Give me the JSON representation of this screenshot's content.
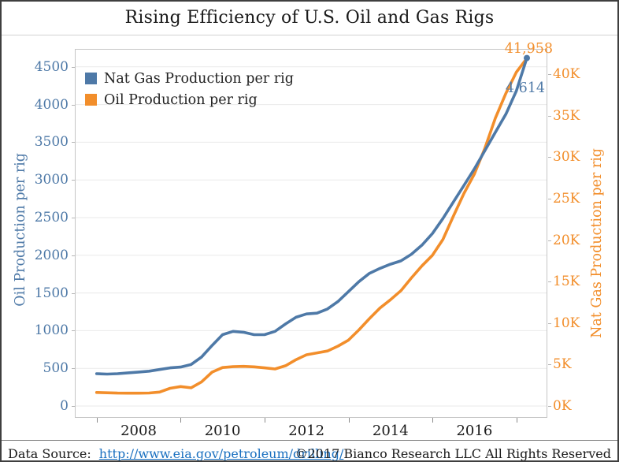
{
  "title": "Rising Efficiency of U.S. Oil and Gas Rigs",
  "colors": {
    "gas_blue": "#4e79a7",
    "oil_orange": "#f28e2b",
    "grid": "#eaeaea",
    "frame": "#c6c6c6",
    "link_blue": "#1a70c0"
  },
  "legend": {
    "items": [
      {
        "label": "Nat Gas Production per rig"
      },
      {
        "label": "Oil Production per rig"
      }
    ]
  },
  "annotations": {
    "gas_end": "41,958",
    "oil_end": "4,614"
  },
  "axes": {
    "left": {
      "title": "Oil Production per rig",
      "tick_values": [
        0,
        500,
        1000,
        1500,
        2000,
        2500,
        3000,
        3500,
        4000,
        4500
      ],
      "tick_labels": [
        "0",
        "500",
        "1000",
        "1500",
        "2000",
        "2500",
        "3000",
        "3500",
        "4000",
        "4500"
      ]
    },
    "right": {
      "title": "Nat Gas Production per rig",
      "tick_values": [
        0,
        5000,
        10000,
        15000,
        20000,
        25000,
        30000,
        35000,
        40000
      ],
      "tick_labels": [
        "0K",
        "5K",
        "10K",
        "15K",
        "20K",
        "25K",
        "30K",
        "35K",
        "40K"
      ]
    },
    "x": {
      "label_years": [
        2008,
        2010,
        2012,
        2014,
        2016
      ],
      "tick_labels": [
        "2008",
        "2010",
        "2012",
        "2014",
        "2016"
      ],
      "minor_tick_years": [
        2007,
        2009,
        2011,
        2013,
        2015,
        2017
      ]
    }
  },
  "footer": {
    "source_label": "Data Source:",
    "link_text": "http://www.eia.gov/petroleum/drilling/",
    "copyright": "©2017 Bianco Research LLC  All Rights Reserved"
  },
  "chart_data": {
    "type": "line",
    "title": "Rising Efficiency of U.S. Oil and Gas Rigs",
    "x": [
      2007,
      2007.25,
      2007.5,
      2007.75,
      2008,
      2008.25,
      2008.5,
      2008.75,
      2009,
      2009.25,
      2009.5,
      2009.75,
      2010,
      2010.25,
      2010.5,
      2010.75,
      2011,
      2011.25,
      2011.5,
      2011.75,
      2012,
      2012.25,
      2012.5,
      2012.75,
      2013,
      2013.25,
      2013.5,
      2013.75,
      2014,
      2014.25,
      2014.5,
      2014.75,
      2015,
      2015.25,
      2015.5,
      2015.75,
      2016,
      2016.25,
      2016.5,
      2016.75,
      2017,
      2017.25
    ],
    "series": [
      {
        "name": "Nat Gas Production per rig",
        "axis": "right",
        "color": "#4e79a7",
        "end_value": 41958,
        "end_label": "41,958",
        "values": [
          3900,
          3850,
          3900,
          4000,
          4100,
          4200,
          4400,
          4600,
          4700,
          5000,
          5900,
          7300,
          8600,
          9000,
          8900,
          8600,
          8600,
          9000,
          9900,
          10700,
          11100,
          11200,
          11700,
          12600,
          13800,
          15000,
          16000,
          16600,
          17100,
          17500,
          18300,
          19400,
          20800,
          22600,
          24600,
          26600,
          28600,
          30800,
          33000,
          35200,
          38000,
          41958
        ]
      },
      {
        "name": "Oil Production per rig",
        "axis": "left",
        "color": "#f28e2b",
        "end_value": 4614,
        "end_label": "4,614",
        "values": [
          180,
          176,
          172,
          170,
          170,
          173,
          185,
          235,
          258,
          242,
          320,
          450,
          510,
          522,
          526,
          520,
          506,
          492,
          535,
          615,
          680,
          705,
          730,
          795,
          875,
          1010,
          1160,
          1300,
          1410,
          1530,
          1700,
          1860,
          2000,
          2210,
          2520,
          2820,
          3080,
          3420,
          3820,
          4150,
          4430,
          4614
        ]
      }
    ],
    "ylabel_left": "Oil Production per rig",
    "ylabel_right": "Nat Gas Production per rig",
    "ylim_left": [
      0,
      4738
    ],
    "ylim_right": [
      0,
      44500
    ],
    "xlim": [
      2006.48,
      2017.74
    ],
    "grid": "horizontal",
    "legend_position": "top-left"
  }
}
